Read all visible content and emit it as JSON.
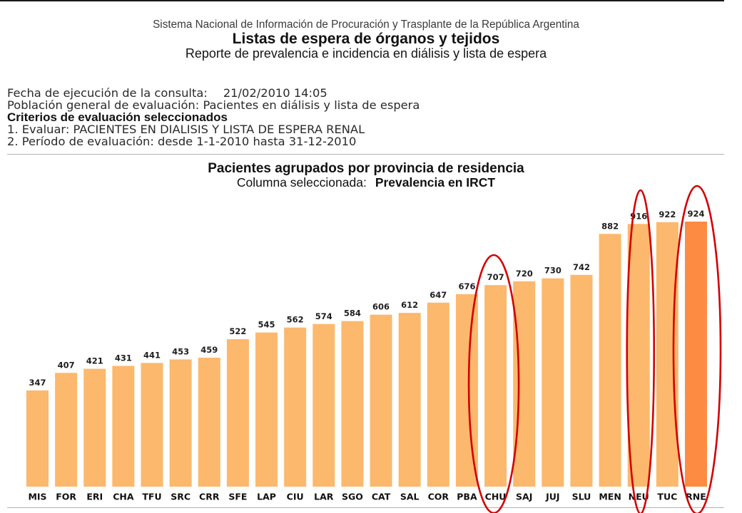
{
  "header": {
    "system_name": "Sistema Nacional de Información de Procuración y Trasplante de la República Argentina",
    "title": "Listas de espera de órganos y tejidos",
    "report_name": "Reporte de prevalencia e incidencia en diálisis y lista de espera"
  },
  "query": {
    "date_label": "Fecha de ejecución de la consulta:",
    "date_value": "21/02/2010 14:05",
    "population_label": "Población general de evaluación:",
    "population_value": "Pacientes en diálisis y lista de espera",
    "criteria_heading": "Criterios de evaluación seleccionados",
    "criteria": [
      "1. Evaluar: PACIENTES EN DIALISIS Y LISTA DE ESPERA RENAL",
      "2. Período de evaluación: desde 1-1-2010 hasta 31-12-2010"
    ]
  },
  "chart_data": {
    "type": "bar",
    "title": "Pacientes agrupados por provincia de residencia",
    "column_label": "Columna seleccionada:",
    "column_value": "Prevalencia en IRCT",
    "categories": [
      "MIS",
      "FOR",
      "ERI",
      "CHA",
      "TFU",
      "SRC",
      "CRR",
      "SFE",
      "LAP",
      "CIU",
      "LAR",
      "SGO",
      "CAT",
      "SAL",
      "COR",
      "PBA",
      "CHU",
      "SAJ",
      "JUJ",
      "SLU",
      "MEN",
      "NEU",
      "TUC",
      "RNE"
    ],
    "values": [
      347,
      407,
      421,
      431,
      441,
      453,
      459,
      522,
      545,
      562,
      574,
      584,
      606,
      612,
      647,
      676,
      707,
      720,
      730,
      742,
      882,
      916,
      922,
      924
    ],
    "bar_color": "#FCB86C",
    "highlight_index": 23,
    "highlight_color": "#FD8B42",
    "circled_indices": [
      16,
      21,
      23
    ],
    "circle_color": "#D40000"
  }
}
